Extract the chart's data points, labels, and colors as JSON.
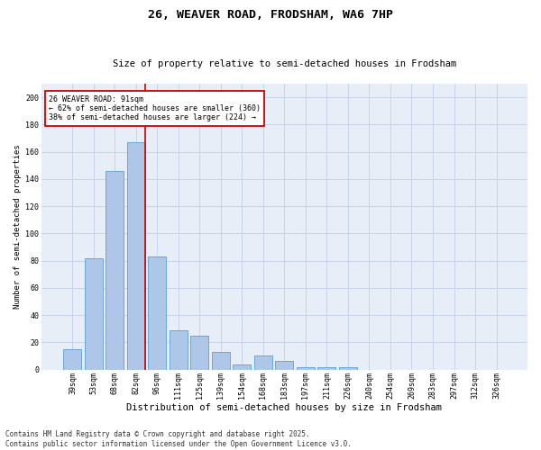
{
  "title": "26, WEAVER ROAD, FRODSHAM, WA6 7HP",
  "subtitle": "Size of property relative to semi-detached houses in Frodsham",
  "xlabel": "Distribution of semi-detached houses by size in Frodsham",
  "ylabel": "Number of semi-detached properties",
  "categories": [
    "39sqm",
    "53sqm",
    "68sqm",
    "82sqm",
    "96sqm",
    "111sqm",
    "125sqm",
    "139sqm",
    "154sqm",
    "168sqm",
    "183sqm",
    "197sqm",
    "211sqm",
    "226sqm",
    "240sqm",
    "254sqm",
    "269sqm",
    "283sqm",
    "297sqm",
    "312sqm",
    "326sqm"
  ],
  "values": [
    15,
    82,
    146,
    167,
    83,
    29,
    25,
    13,
    4,
    10,
    6,
    2,
    2,
    2,
    0,
    0,
    0,
    0,
    0,
    0,
    0
  ],
  "bar_color": "#aec6e8",
  "bar_edge_color": "#5a9fd4",
  "marker_bin_index": 3,
  "marker_label": "26 WEAVER ROAD: 91sqm",
  "pct_smaller": "62% of semi-detached houses are smaller (360)",
  "pct_larger": "38% of semi-detached houses are larger (224)",
  "annotation_box_color": "#ffffff",
  "annotation_box_edge": "#cc0000",
  "marker_line_color": "#cc0000",
  "grid_color": "#c8d4e8",
  "background_color": "#e8eef8",
  "ylim": [
    0,
    210
  ],
  "yticks": [
    0,
    20,
    40,
    60,
    80,
    100,
    120,
    140,
    160,
    180,
    200
  ],
  "footer": "Contains HM Land Registry data © Crown copyright and database right 2025.\nContains public sector information licensed under the Open Government Licence v3.0.",
  "title_fontsize": 9.5,
  "subtitle_fontsize": 7.5,
  "xlabel_fontsize": 7.5,
  "ylabel_fontsize": 6.5,
  "tick_fontsize": 6,
  "annotation_fontsize": 6,
  "footer_fontsize": 5.5
}
